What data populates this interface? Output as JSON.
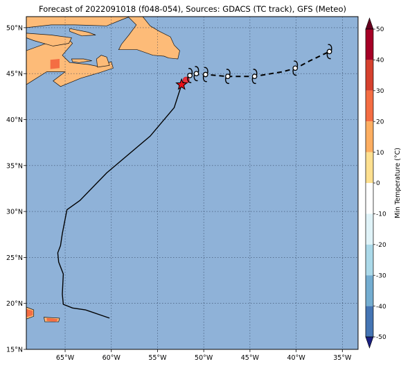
{
  "title": "Forecast of 2022091018 (f048-054), Sources: GDACS (TC track), GFS (Meteo)",
  "map": {
    "lon_range": [
      -69.2,
      -33.3
    ],
    "lat_range": [
      15,
      51.2
    ],
    "ocean_color": "#8fb2d8",
    "land_color": "#fdbb78",
    "grid": true,
    "lon_ticks": [
      {
        "lon": -65,
        "label": "65°W"
      },
      {
        "lon": -60,
        "label": "60°W"
      },
      {
        "lon": -55,
        "label": "55°W"
      },
      {
        "lon": -50,
        "label": "50°W"
      },
      {
        "lon": -45,
        "label": "45°W"
      },
      {
        "lon": -40,
        "label": "40°W"
      },
      {
        "lon": -35,
        "label": "35°W"
      }
    ],
    "lat_ticks": [
      {
        "lat": 15,
        "label": "15°N"
      },
      {
        "lat": 20,
        "label": "20°N"
      },
      {
        "lat": 25,
        "label": "25°N"
      },
      {
        "lat": 30,
        "label": "30°N"
      },
      {
        "lat": 35,
        "label": "35°N"
      },
      {
        "lat": 40,
        "label": "40°N"
      },
      {
        "lat": 45,
        "label": "45°N"
      },
      {
        "lat": 50,
        "label": "50°N"
      }
    ]
  },
  "track": {
    "past": [
      [
        -60.2,
        18.4
      ],
      [
        -62.8,
        19.3
      ],
      [
        -64.2,
        19.5
      ],
      [
        -65.2,
        19.9
      ],
      [
        -65.3,
        21.0
      ],
      [
        -65.2,
        23.2
      ],
      [
        -65.7,
        24.5
      ],
      [
        -65.8,
        25.5
      ],
      [
        -65.5,
        26.3
      ],
      [
        -65.3,
        27.6
      ],
      [
        -64.8,
        30.2
      ],
      [
        -63.4,
        31.2
      ],
      [
        -60.5,
        34.2
      ],
      [
        -55.8,
        38.2
      ],
      [
        -53.2,
        41.3
      ],
      [
        -52.4,
        43.8
      ]
    ],
    "forecast": [
      [
        -52.4,
        43.8
      ],
      [
        -51.8,
        44.5
      ],
      [
        -51.1,
        44.9
      ],
      [
        -49.8,
        44.9
      ],
      [
        -47.5,
        44.7
      ],
      [
        -44.5,
        44.7
      ],
      [
        -41.5,
        45.2
      ],
      [
        -40.0,
        45.6
      ],
      [
        -38.5,
        46.4
      ],
      [
        -36.4,
        47.4
      ]
    ],
    "current_position": [
      -52.4,
      43.8
    ],
    "forecast_area": [
      -51.9,
      44.3
    ],
    "symbols": [
      [
        -51.5,
        44.8
      ],
      [
        -50.8,
        45.0
      ],
      [
        -49.8,
        44.9
      ],
      [
        -47.4,
        44.7
      ],
      [
        -44.5,
        44.7
      ],
      [
        -40.1,
        45.6
      ],
      [
        -36.4,
        47.4
      ]
    ]
  },
  "land_patches": [
    {
      "name": "nova-scotia-region",
      "points": [
        [
          -69.2,
          47.5
        ],
        [
          -67.3,
          48.2
        ],
        [
          -64.8,
          48.9
        ],
        [
          -64.2,
          48.3
        ],
        [
          -65.3,
          47.0
        ],
        [
          -64.5,
          46.2
        ],
        [
          -62.5,
          46.0
        ],
        [
          -61.5,
          45.8
        ],
        [
          -60.0,
          46.3
        ],
        [
          -59.8,
          45.6
        ],
        [
          -61.3,
          45.1
        ],
        [
          -63.3,
          44.5
        ],
        [
          -65.5,
          43.6
        ],
        [
          -66.3,
          44.2
        ],
        [
          -65.0,
          45.2
        ],
        [
          -67.0,
          45.2
        ],
        [
          -69.2,
          43.8
        ]
      ]
    },
    {
      "name": "gaspe-region",
      "points": [
        [
          -69.2,
          49.4
        ],
        [
          -66.5,
          49.2
        ],
        [
          -64.3,
          48.9
        ],
        [
          -64.6,
          48.3
        ],
        [
          -66.3,
          48.0
        ],
        [
          -68.4,
          48.6
        ],
        [
          -69.2,
          48.9
        ]
      ]
    },
    {
      "name": "north-shore",
      "points": [
        [
          -69.2,
          51.2
        ],
        [
          -69.2,
          50.0
        ],
        [
          -66.5,
          50.3
        ],
        [
          -64.0,
          50.3
        ],
        [
          -60.5,
          50.2
        ],
        [
          -58.8,
          50.9
        ],
        [
          -58.0,
          51.2
        ]
      ]
    },
    {
      "name": "anticosti",
      "points": [
        [
          -64.5,
          49.9
        ],
        [
          -62.5,
          49.5
        ],
        [
          -61.7,
          49.2
        ],
        [
          -63.2,
          49.1
        ],
        [
          -64.5,
          49.6
        ]
      ]
    },
    {
      "name": "newfoundland",
      "points": [
        [
          -59.2,
          47.6
        ],
        [
          -57.2,
          47.6
        ],
        [
          -55.5,
          47.0
        ],
        [
          -54.3,
          46.9
        ],
        [
          -53.8,
          46.7
        ],
        [
          -52.8,
          46.6
        ],
        [
          -52.6,
          47.5
        ],
        [
          -53.2,
          48.1
        ],
        [
          -53.6,
          49.0
        ],
        [
          -54.8,
          49.6
        ],
        [
          -55.8,
          50.2
        ],
        [
          -56.6,
          51.2
        ],
        [
          -58.2,
          51.2
        ],
        [
          -57.3,
          50.3
        ],
        [
          -58.1,
          49.2
        ],
        [
          -58.9,
          48.2
        ]
      ]
    },
    {
      "name": "cape-breton",
      "points": [
        [
          -61.5,
          45.7
        ],
        [
          -60.2,
          45.9
        ],
        [
          -60.5,
          46.8
        ],
        [
          -61.1,
          47.0
        ],
        [
          -61.6,
          46.6
        ]
      ]
    },
    {
      "name": "pei",
      "points": [
        [
          -64.3,
          46.6
        ],
        [
          -63.0,
          46.6
        ],
        [
          -62.1,
          46.4
        ],
        [
          -63.5,
          46.2
        ],
        [
          -64.2,
          46.3
        ]
      ]
    },
    {
      "name": "puerto-rico",
      "points": [
        [
          -67.3,
          18.5
        ],
        [
          -65.6,
          18.4
        ],
        [
          -65.7,
          18.0
        ],
        [
          -67.2,
          18.0
        ]
      ]
    },
    {
      "name": "hispaniola-edge",
      "points": [
        [
          -69.2,
          19.6
        ],
        [
          -68.4,
          19.3
        ],
        [
          -68.4,
          18.6
        ],
        [
          -69.2,
          18.3
        ]
      ]
    }
  ],
  "warm_patches": [
    {
      "name": "inland-warm",
      "points": [
        [
          -66.6,
          46.5
        ],
        [
          -65.6,
          46.6
        ],
        [
          -65.6,
          45.6
        ],
        [
          -66.6,
          45.5
        ]
      ]
    },
    {
      "name": "hispaniola-warm",
      "points": [
        [
          -69.2,
          19.4
        ],
        [
          -68.5,
          19.2
        ],
        [
          -68.5,
          18.7
        ],
        [
          -69.2,
          18.5
        ]
      ]
    },
    {
      "name": "puerto-rico-warm",
      "points": [
        [
          -67.0,
          18.4
        ],
        [
          -65.8,
          18.3
        ],
        [
          -65.9,
          18.0
        ],
        [
          -67.0,
          18.1
        ]
      ]
    }
  ],
  "colorbar": {
    "label": "Min Temperature (°C)",
    "ticks": [
      50,
      40,
      30,
      20,
      10,
      0,
      -10,
      -20,
      -30,
      -40,
      -50
    ],
    "colors": [
      "#fde0a2",
      "#fdbb78",
      "#f46d43",
      "#d63a2b",
      "#a50026",
      "#80001a",
      "#c7e5f2",
      "#92c5de",
      "#5a9bd3",
      "#2f6cae",
      "#313695",
      "#1a1f80"
    ]
  }
}
